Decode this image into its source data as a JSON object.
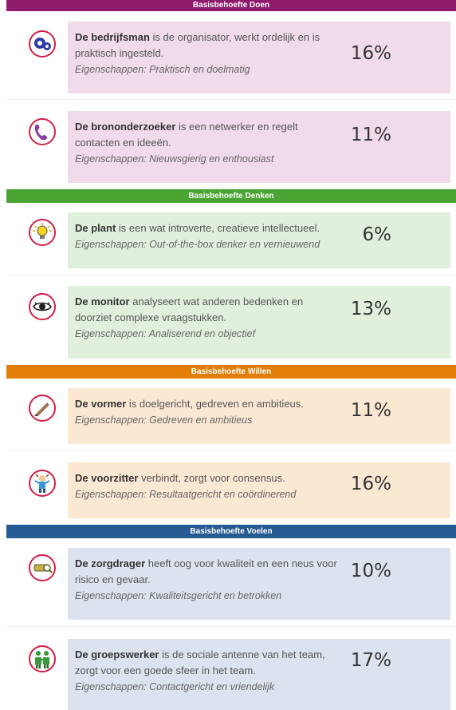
{
  "sections": {
    "doen": {
      "title": "Basisbehoefte Doen",
      "color": "#8e1a6b",
      "card_color": "#f1dbea"
    },
    "denken": {
      "title": "Basisbehoefte Denken",
      "color": "#4aa431",
      "card_color": "#e1f0dd"
    },
    "willen": {
      "title": "Basisbehoefte Willen",
      "color": "#e27e07",
      "card_color": "#fbe8d3"
    },
    "voelen": {
      "title": "Basisbehoefte Voelen",
      "color": "#265a92",
      "card_color": "#dde3ee"
    }
  },
  "roles": [
    {
      "name": "De bedrijfsman",
      "desc": " is de organisator, werkt ordelijk en is praktisch ingesteld.",
      "props": "Eigenschappen: Praktisch en doelmatig",
      "pct": "16%",
      "icon": "gears-icon"
    },
    {
      "name": "De brononderzoeker",
      "desc": " is een netwerker en regelt contacten en ideeën.",
      "props": "Eigenschappen: Nieuwsgierig en enthousiast",
      "pct": "11%",
      "icon": "phone-icon"
    },
    {
      "name": "De plant",
      "desc": " is een wat introverte, creatieve intellectueel.",
      "props": "Eigenschappen: Out-of-the-box denker en vernieuwend",
      "pct": "6%",
      "icon": "lightbulb-icon"
    },
    {
      "name": "De monitor",
      "desc": " analyseert wat anderen bedenken en doorziet complexe vraagstukken.",
      "props": "Eigenschappen: Analiserend en objectief",
      "pct": "13%",
      "icon": "eye-icon"
    },
    {
      "name": "De vormer",
      "desc": " is doelgericht, gedreven en ambitieus.",
      "props": "Eigenschappen: Gedreven en ambitieus",
      "pct": "11%",
      "icon": "pen-icon"
    },
    {
      "name": "De voorzitter",
      "desc": " verbindt, zorgt voor consensus.",
      "props": "Eigenschappen: Resultaatgericht en coördinerend",
      "pct": "16%",
      "icon": "person-icon"
    },
    {
      "name": "De zorgdrager",
      "desc": " heeft oog voor kwaliteit en een neus voor risico en gevaar.",
      "props": "Eigenschappen: Kwaliteitsgericht en betrokken",
      "pct": "10%",
      "icon": "magnifier-icon"
    },
    {
      "name": "De groepswerker",
      "desc": " is de sociale antenne van het team, zorgt voor een goede sfeer in het team.",
      "props": "Eigenschappen: Contactgericht en vriendelijk",
      "pct": "17%",
      "icon": "group-icon"
    }
  ]
}
